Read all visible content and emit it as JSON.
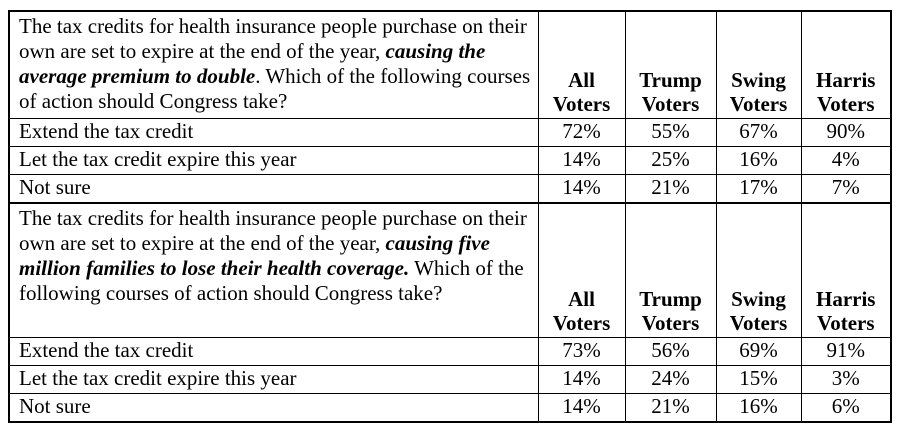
{
  "colors": {
    "background": "#ffffff",
    "border": "#000000",
    "text": "#000000"
  },
  "columns": [
    {
      "line1": "All",
      "line2": "Voters"
    },
    {
      "line1": "Trump",
      "line2": "Voters"
    },
    {
      "line1": "Swing",
      "line2": "Voters"
    },
    {
      "line1": "Harris",
      "line2": "Voters"
    }
  ],
  "blocks": [
    {
      "question": {
        "pre": "The tax credits for health insurance people purchase on their own are set to expire at the end of the year, ",
        "emphasis": "causing the average premium to double",
        "post": ". Which of the following courses of action should Congress take?"
      },
      "rows": [
        {
          "label": "Extend the tax credit",
          "values": [
            "72%",
            "55%",
            "67%",
            "90%"
          ]
        },
        {
          "label": "Let the tax credit expire this year",
          "values": [
            "14%",
            "25%",
            "16%",
            "4%"
          ]
        },
        {
          "label": "Not sure",
          "values": [
            "14%",
            "21%",
            "17%",
            "7%"
          ]
        }
      ]
    },
    {
      "question": {
        "pre": "The tax credits for health insurance people purchase on their own are set to expire at the end of the year, ",
        "emphasis": "causing five million families to lose their health coverage.",
        "post": " Which of the following courses of action should Congress take?"
      },
      "rows": [
        {
          "label": "Extend the tax credit",
          "values": [
            "73%",
            "56%",
            "69%",
            "91%"
          ]
        },
        {
          "label": "Let the tax credit expire this year",
          "values": [
            "14%",
            "24%",
            "15%",
            "3%"
          ]
        },
        {
          "label": "Not sure",
          "values": [
            "14%",
            "21%",
            "16%",
            "6%"
          ]
        }
      ]
    }
  ]
}
